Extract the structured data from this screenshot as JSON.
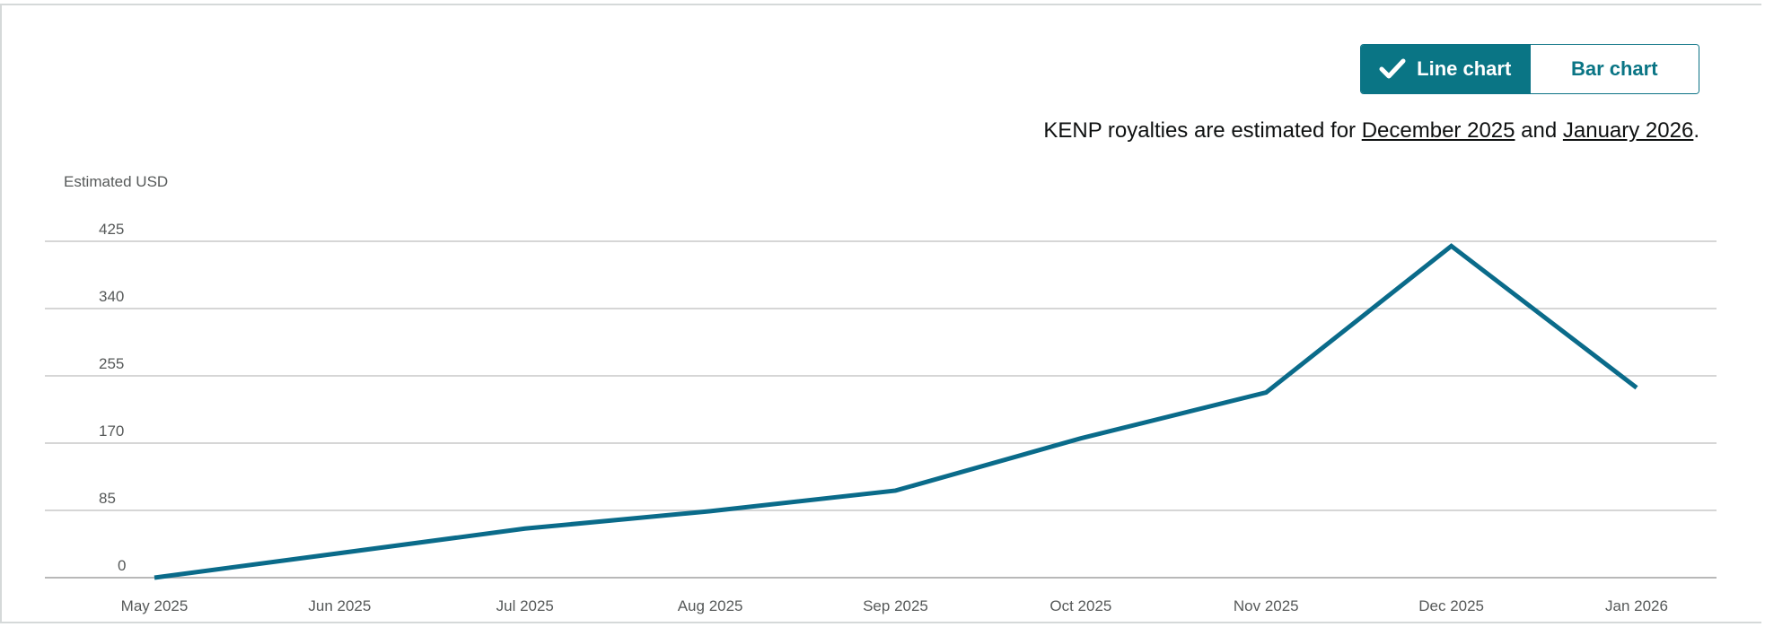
{
  "toggle": {
    "line_label": "Line chart",
    "bar_label": "Bar chart"
  },
  "note": {
    "prefix": "KENP royalties are estimated for ",
    "link1": "December 2025",
    "middle": " and ",
    "link2": "January 2026",
    "suffix": "."
  },
  "colors": {
    "accent": "#0a7585",
    "series": "#0a6b8a",
    "grid": "#c8c8c8",
    "axis_text": "#565959"
  },
  "chart_data": {
    "type": "line",
    "ylabel": "Estimated USD",
    "xlabel": "",
    "ylim": [
      0,
      425
    ],
    "yticks": [
      0,
      85,
      170,
      255,
      340,
      425
    ],
    "categories": [
      "May 2025",
      "Jun 2025",
      "Jul 2025",
      "Aug 2025",
      "Sep 2025",
      "Oct 2025",
      "Nov 2025",
      "Dec 2025",
      "Jan 2026"
    ],
    "series": [
      {
        "values": [
          0,
          null,
          62,
          84,
          110,
          176,
          234,
          419,
          240
        ]
      }
    ],
    "grid": true
  }
}
